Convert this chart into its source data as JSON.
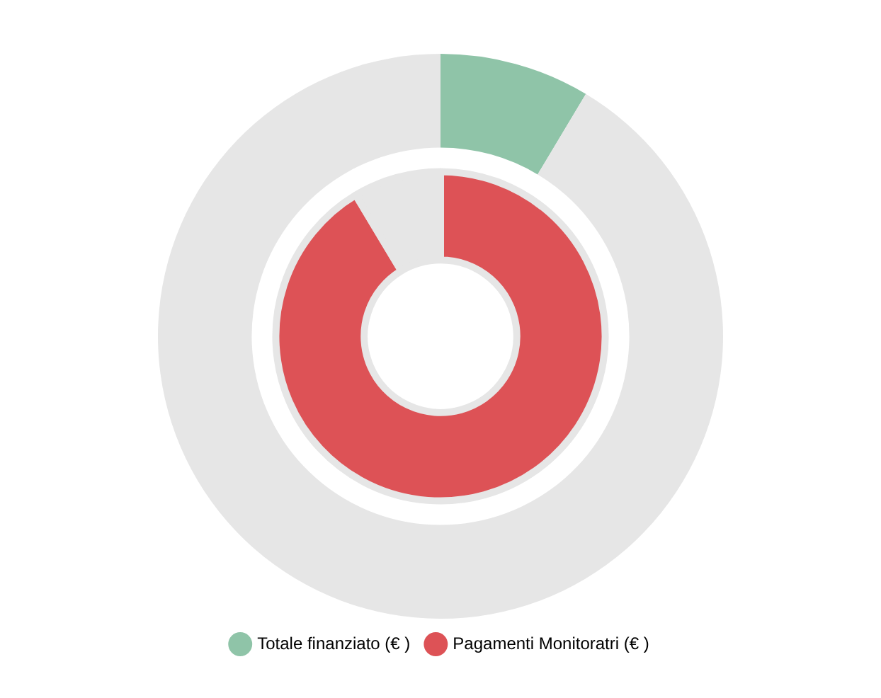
{
  "chart_data": {
    "type": "donut",
    "categories": [
      null,
      null
    ],
    "legend": "bottom",
    "series": [
      {
        "name": "Totale finanziato (€ )",
        "color": "#8fc4a8",
        "colors": [
          "#8fc4a8",
          "#e6e6e6"
        ],
        "values": [
          8.6,
          91.4
        ]
      },
      {
        "name": "Pagamenti Monitoratri (€ )",
        "color": "#dd5256",
        "colors": [
          "#dd5256",
          "#e6e6e6"
        ],
        "values": [
          91.4,
          8.6
        ]
      }
    ]
  }
}
